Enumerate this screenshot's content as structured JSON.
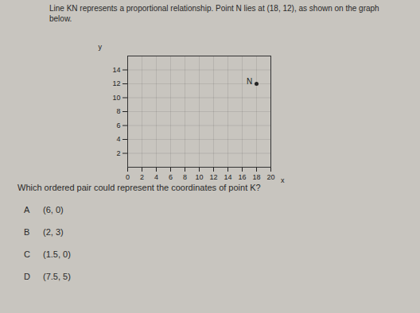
{
  "intro": "Line KN represents a proportional relationship. Point N lies at (18, 12), as shown on the graph below.",
  "chart_data": {
    "type": "scatter",
    "x_label": "x",
    "y_label": "y",
    "points": [
      {
        "x": 18,
        "y": 12,
        "label": "N"
      }
    ],
    "xlim": [
      0,
      20
    ],
    "xticks": [
      0,
      2,
      4,
      6,
      8,
      10,
      12,
      14,
      16,
      18,
      20
    ],
    "ylim": [
      0,
      16
    ],
    "yticks": [
      2,
      4,
      6,
      8,
      10,
      12,
      14
    ],
    "grid": true
  },
  "question": "Which ordered pair could represent the coordinates of point K?",
  "choices": [
    {
      "letter": "A",
      "text": "(6, 0)"
    },
    {
      "letter": "B",
      "text": "(2, 3)"
    },
    {
      "letter": "C",
      "text": "(1.5, 0)"
    },
    {
      "letter": "D",
      "text": "(7.5, 5)"
    }
  ]
}
